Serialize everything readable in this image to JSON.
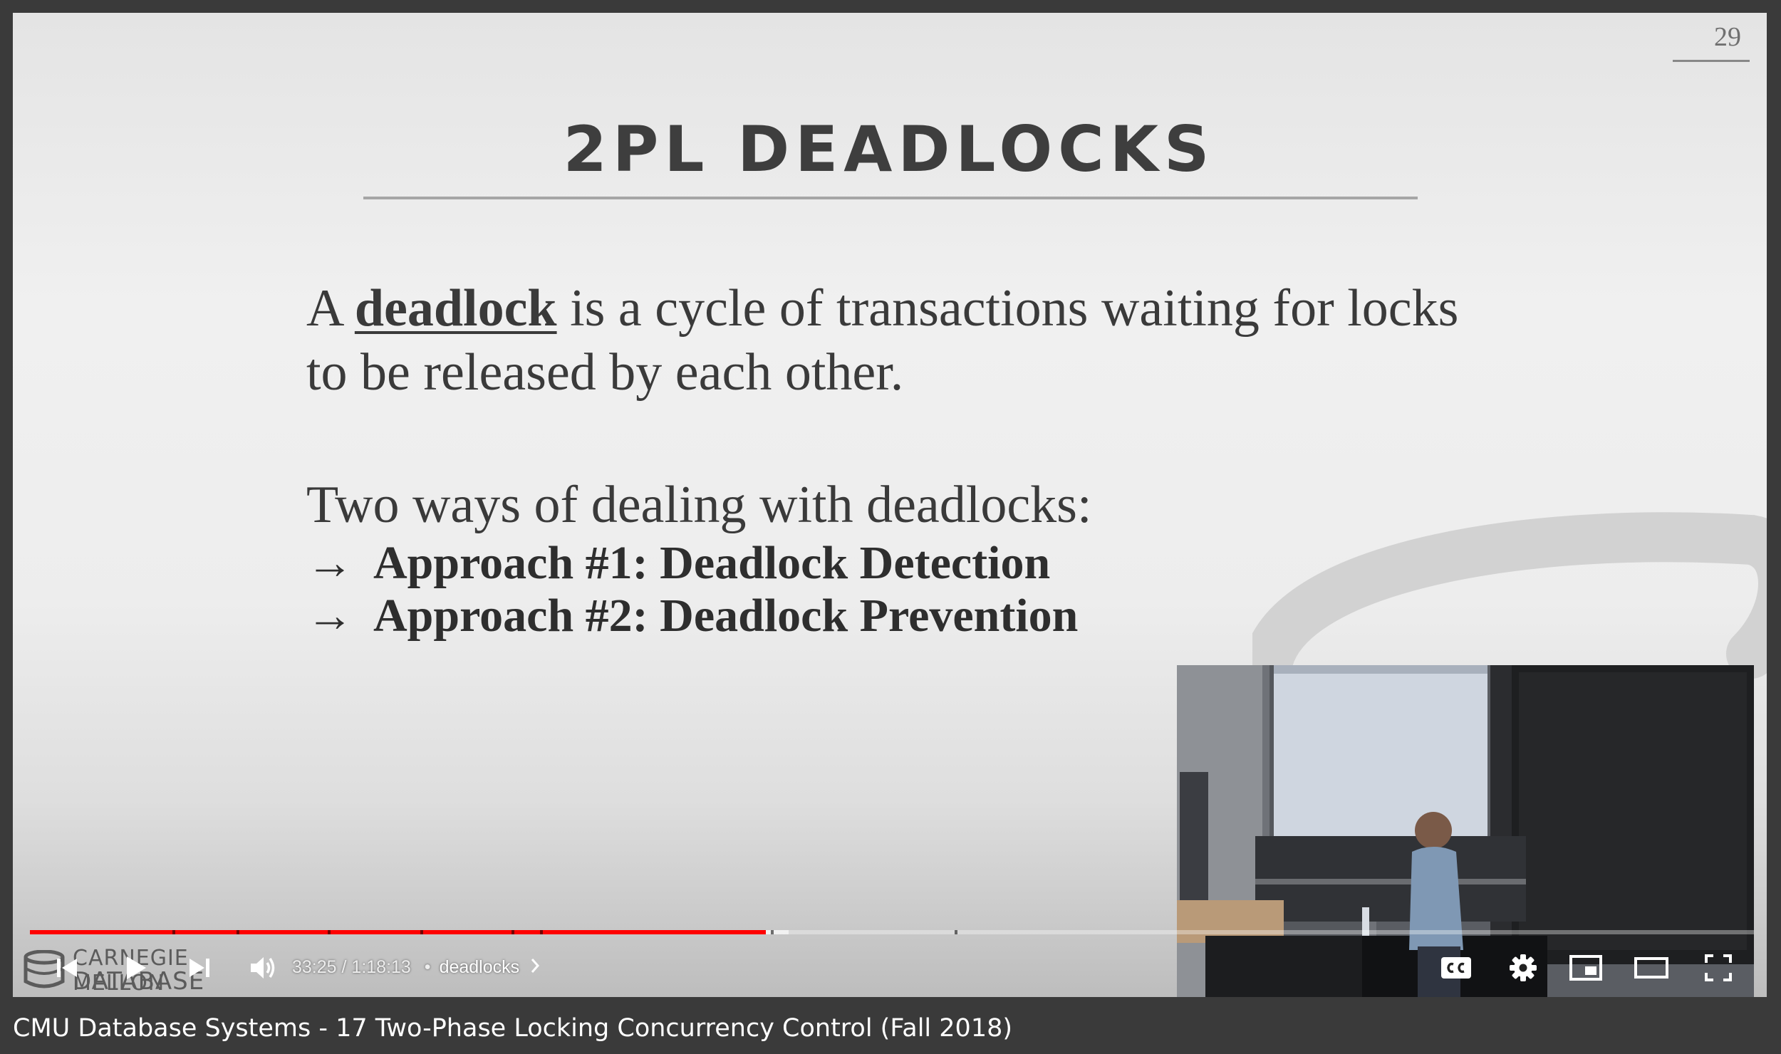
{
  "slide": {
    "number": "29",
    "title": "2PL DEADLOCKS",
    "definition_prefix": "A ",
    "definition_keyword": "deadlock",
    "definition_rest": " is a cycle of transactions waiting for locks to be released by each other.",
    "lead": "Two ways of dealing with deadlocks:",
    "arrow": "→",
    "bullets": [
      "Approach #1: Deadlock Detection",
      "Approach #2: Deadlock Prevention"
    ]
  },
  "logo": {
    "line1": "CARNEGIE MELLON",
    "line2": "DATABASE GROUP"
  },
  "player": {
    "current_time": "33:25",
    "separator": "/",
    "duration": "1:18:13",
    "dot": "•",
    "chapter": "deadlocks",
    "played_fraction": 0.427,
    "buffered_fraction": 0.44,
    "colors": {
      "played": "#ff0000"
    },
    "icons": [
      "previous-icon",
      "play-icon",
      "next-icon",
      "volume-icon",
      "captions-icon",
      "settings-icon",
      "miniplayer-icon",
      "theater-mode-icon",
      "fullscreen-icon"
    ]
  },
  "video_title": "CMU Database Systems - 17 Two-Phase Locking Concurrency Control (Fall 2018)"
}
